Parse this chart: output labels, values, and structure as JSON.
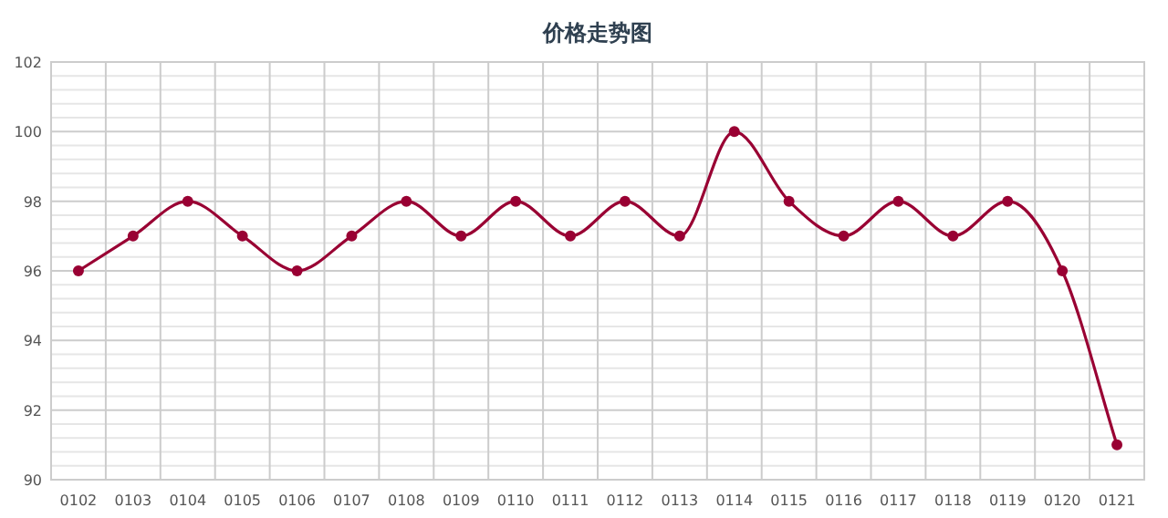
{
  "chart_data": {
    "type": "line",
    "title": "价格走势图",
    "categories": [
      "0102",
      "0103",
      "0104",
      "0105",
      "0106",
      "0107",
      "0108",
      "0109",
      "0110",
      "0111",
      "0112",
      "0113",
      "0114",
      "0115",
      "0116",
      "0117",
      "0118",
      "0119",
      "0120",
      "0121"
    ],
    "series": [
      {
        "color": "#990033",
        "values": [
          96,
          97,
          98,
          97,
          96,
          97,
          98,
          97,
          98,
          97,
          98,
          97,
          100,
          98,
          97,
          98,
          97,
          98,
          96,
          91
        ]
      }
    ],
    "ylim": [
      90,
      102
    ],
    "yticks": [
      90,
      92,
      94,
      96,
      98,
      100,
      102
    ],
    "grid": true,
    "marker": "circle",
    "line_style": "solid"
  }
}
